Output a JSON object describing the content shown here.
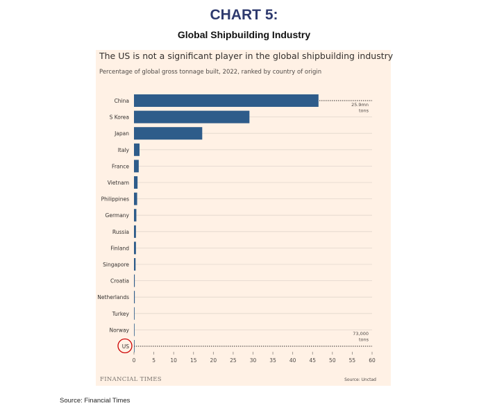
{
  "header": {
    "title": "CHART 5:",
    "subtitle": "Global Shipbuilding Industry"
  },
  "footer": {
    "source": "Source: Financial Times"
  },
  "colors": {
    "bar": "#2e5c8a",
    "panel_background": "#fff1e5",
    "heading": "#2e3a6e",
    "highlight_circle": "#cc0000"
  },
  "chart_data": {
    "type": "bar",
    "orientation": "horizontal",
    "title": "The US is not a significant player in the global shipbuilding industry",
    "subtitle": "Percentage of global gross tonnage built, 2022, ranked by country of origin",
    "categories": [
      "China",
      "S Korea",
      "Japan",
      "Italy",
      "France",
      "Vietnam",
      "Philippines",
      "Germany",
      "Russia",
      "Finland",
      "Singapore",
      "Croatia",
      "Netherlands",
      "Turkey",
      "Norway",
      "US"
    ],
    "values": [
      46.5,
      29.1,
      17.2,
      1.4,
      1.2,
      0.9,
      0.8,
      0.6,
      0.5,
      0.5,
      0.4,
      0.2,
      0.2,
      0.15,
      0.12,
      0.01
    ],
    "xlim": [
      0,
      60
    ],
    "xticks": [
      0,
      5,
      10,
      15,
      20,
      25,
      30,
      35,
      40,
      45,
      50,
      55,
      60
    ],
    "grid": true,
    "highlight_category": "US",
    "annotations": [
      {
        "category": "China",
        "lines": [
          "25.9mn",
          "tons"
        ]
      },
      {
        "category": "US",
        "lines": [
          "73,000",
          "tons"
        ]
      }
    ],
    "logo_text": "FINANCIAL TIMES",
    "source_note": "Source: Unctad"
  }
}
